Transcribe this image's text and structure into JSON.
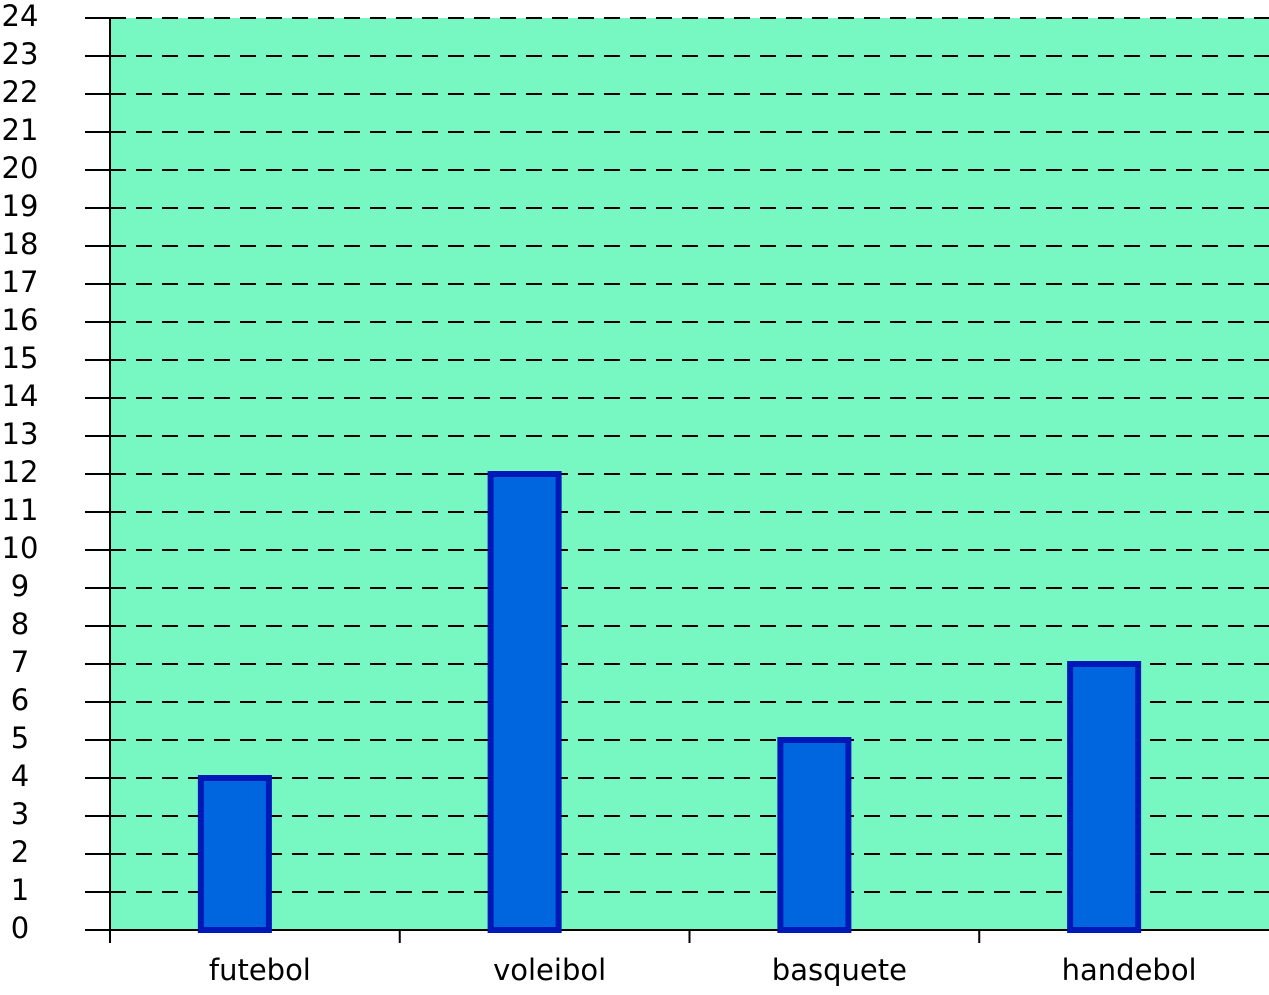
{
  "chart_data": {
    "type": "bar",
    "categories": [
      "futebol",
      "voleibol",
      "basquete",
      "handebol"
    ],
    "values": [
      4,
      12,
      5,
      7
    ],
    "color": "#0066e0",
    "edge_color": "#0018b8",
    "background_color": "#77f7c2",
    "ylim": [
      0,
      24
    ],
    "yticks": [
      0,
      1,
      2,
      3,
      4,
      5,
      6,
      7,
      8,
      9,
      10,
      11,
      12,
      13,
      14,
      15,
      16,
      17,
      18,
      19,
      20,
      21,
      22,
      23,
      24
    ],
    "grid": true
  }
}
